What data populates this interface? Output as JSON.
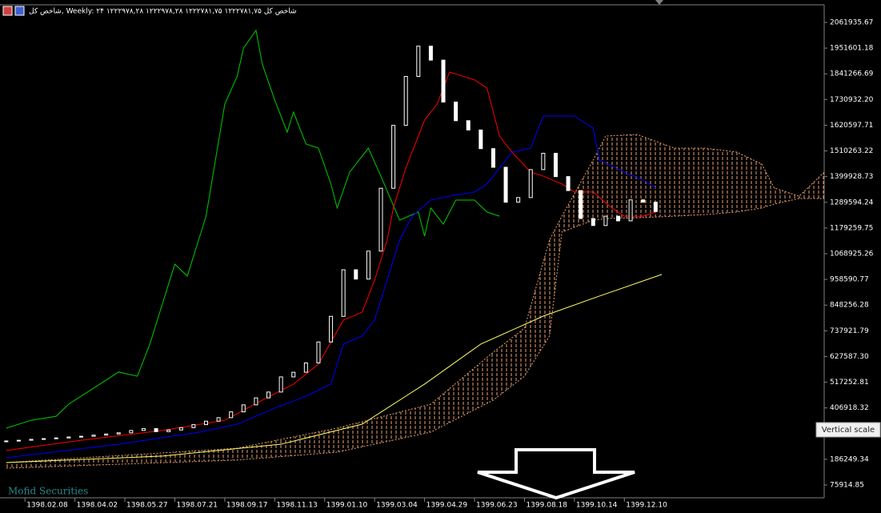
{
  "header": {
    "title": "شاخص کل, Weekly: ۲۴ ۱۲۲۲۹۷۸,۲۸ ۱۲۲۲۹۷۸,۲۸ ۱۲۲۲۷۸۱,۷۵ ۱۲۲۲۷۸۱,۷۵ شاخص کل"
  },
  "watermark": "Mofid Securities",
  "tooltip": "Vertical scale",
  "chart_data": {
    "type": "candlestick",
    "x": [
      0,
      2,
      4,
      6,
      8,
      10,
      12,
      14,
      16,
      18,
      20,
      22,
      24,
      26,
      28,
      30,
      32,
      34,
      36,
      38,
      40,
      42,
      44,
      46,
      48,
      50,
      52,
      54,
      56,
      58,
      60,
      62,
      64,
      66,
      68,
      70,
      72,
      74,
      76,
      78,
      80,
      82,
      84,
      86,
      88,
      90,
      92,
      94,
      96,
      98,
      100,
      102,
      104
    ],
    "open": [
      262000,
      265000,
      268000,
      272000,
      275000,
      278000,
      282000,
      285000,
      290000,
      295000,
      300000,
      310000,
      318000,
      305000,
      312000,
      322000,
      335000,
      350000,
      365000,
      390000,
      420000,
      450000,
      475000,
      540000,
      560000,
      600000,
      690000,
      800000,
      1000000,
      960000,
      1080000,
      1350000,
      1620000,
      1830000,
      1960000,
      1900000,
      1720000,
      1640000,
      1600000,
      1520000,
      1440000,
      1290000,
      1310000,
      1430000,
      1500000,
      1400000,
      1340000,
      1220000,
      1190000,
      1230000,
      1210000,
      1300000,
      1290000
    ],
    "close": [
      265000,
      268000,
      272000,
      275000,
      278000,
      282000,
      285000,
      290000,
      295000,
      300000,
      310000,
      318000,
      305000,
      312000,
      322000,
      335000,
      350000,
      365000,
      390000,
      420000,
      450000,
      475000,
      540000,
      560000,
      600000,
      690000,
      800000,
      1000000,
      960000,
      1080000,
      1350000,
      1620000,
      1830000,
      1960000,
      1900000,
      1720000,
      1640000,
      1600000,
      1520000,
      1440000,
      1290000,
      1310000,
      1430000,
      1500000,
      1400000,
      1340000,
      1220000,
      1190000,
      1230000,
      1210000,
      1300000,
      1290000,
      1250000
    ],
    "up_color": "#000000",
    "down_color": "#ffffff",
    "lines": [
      {
        "color": "#00cc00",
        "x": [
          0,
          4,
          8,
          10,
          14,
          18,
          21,
          23,
          27,
          29,
          32,
          35,
          37,
          38,
          40,
          41,
          43,
          45,
          46,
          48,
          50,
          52,
          53,
          55,
          58,
          60,
          63,
          66,
          67,
          68,
          70,
          72,
          75,
          77,
          79
        ],
        "values": [
          320000,
          354000,
          371000,
          423000,
          492000,
          561000,
          543000,
          681000,
          1024000,
          973000,
          1230000,
          1711000,
          1832000,
          1952000,
          2028000,
          1883000,
          1729000,
          1591000,
          1677000,
          1540000,
          1522000,
          1368000,
          1265000,
          1419000,
          1522000,
          1402000,
          1213000,
          1248000,
          1144000,
          1265000,
          1196000,
          1299000,
          1299000,
          1248000,
          1230000
        ]
      },
      {
        "color": "#ff0000",
        "x": [
          0,
          12,
          25,
          35,
          41,
          46,
          50,
          54,
          57,
          59,
          61,
          62,
          64,
          67,
          69,
          71,
          73,
          75,
          77,
          79,
          81,
          84,
          86,
          89,
          91,
          94,
          97,
          99,
          102,
          104
        ],
        "values": [
          224000,
          268000,
          310000,
          354000,
          440000,
          509000,
          595000,
          784000,
          818000,
          956000,
          1127000,
          1265000,
          1437000,
          1643000,
          1711000,
          1849000,
          1832000,
          1815000,
          1780000,
          1574000,
          1505000,
          1419000,
          1402000,
          1368000,
          1334000,
          1334000,
          1265000,
          1230000,
          1230000,
          1248000
        ]
      },
      {
        "color": "#0000ff",
        "x": [
          0,
          18,
          31,
          37,
          43,
          48,
          52,
          54,
          57,
          59,
          61,
          63,
          65,
          68,
          71,
          75,
          77,
          79,
          81,
          84,
          86,
          91,
          94,
          95,
          99,
          102,
          104
        ],
        "values": [
          193000,
          251000,
          303000,
          337000,
          406000,
          457000,
          509000,
          681000,
          715000,
          784000,
          956000,
          1127000,
          1230000,
          1299000,
          1316000,
          1334000,
          1368000,
          1437000,
          1505000,
          1522000,
          1660000,
          1660000,
          1608000,
          1471000,
          1419000,
          1385000,
          1351000
        ]
      },
      {
        "color": "#ffff66",
        "x": [
          0,
          25,
          44,
          57,
          67,
          76,
          86,
          95,
          105
        ],
        "values": [
          172000,
          200000,
          251000,
          337000,
          509000,
          681000,
          801000,
          887000,
          980000
        ]
      }
    ],
    "cloud": {
      "color": "#e8a070",
      "x": [
        0,
        37,
        53,
        68,
        78,
        83,
        87,
        89,
        94,
        96,
        101,
        107,
        112,
        117,
        121,
        123,
        127,
        131
      ],
      "span_a": [
        172000,
        234000,
        320000,
        423000,
        646000,
        749000,
        1127000,
        1230000,
        1471000,
        1574000,
        1581000,
        1522000,
        1522000,
        1505000,
        1454000,
        1351000,
        1316000,
        1419000
      ],
      "span_b": [
        148000,
        183000,
        217000,
        303000,
        440000,
        543000,
        715000,
        1162000,
        1213000,
        1220000,
        1223000,
        1230000,
        1237000,
        1248000,
        1265000,
        1282000,
        1306000,
        1306000
      ]
    },
    "xlim": [
      -1,
      131
    ],
    "ylim": [
      -23700,
      2130660
    ],
    "xticks": [
      {
        "value": 3,
        "label": "1398.02.08"
      },
      {
        "value": 11,
        "label": "1398.04.02"
      },
      {
        "value": 19,
        "label": "1398.05.27"
      },
      {
        "value": 27,
        "label": "1398.07.21"
      },
      {
        "value": 35,
        "label": "1398.09.17"
      },
      {
        "value": 43,
        "label": "1398.11.13"
      },
      {
        "value": 51,
        "label": "1399.01.10"
      },
      {
        "value": 59,
        "label": "1399.03.04"
      },
      {
        "value": 67,
        "label": "1399.04.29"
      },
      {
        "value": 75,
        "label": "1399.06.23"
      },
      {
        "value": 83,
        "label": "1399.08.18"
      },
      {
        "value": 91,
        "label": "1399.10.14"
      },
      {
        "value": 99,
        "label": "1399.12.10"
      }
    ],
    "yticks": [
      2061935.67,
      1951601.18,
      1841266.69,
      {
        "value": 1730932.2,
        "label": "1730932.20"
      },
      1620597.71,
      1510263.22,
      1399928.73,
      1289594.24,
      1179259.75,
      1068925.26,
      958590.77,
      848256.28,
      737921.79,
      {
        "value": 627587.3,
        "label": "627587.30"
      },
      517252.81,
      406918.32,
      186249.34,
      75914.85
    ]
  }
}
